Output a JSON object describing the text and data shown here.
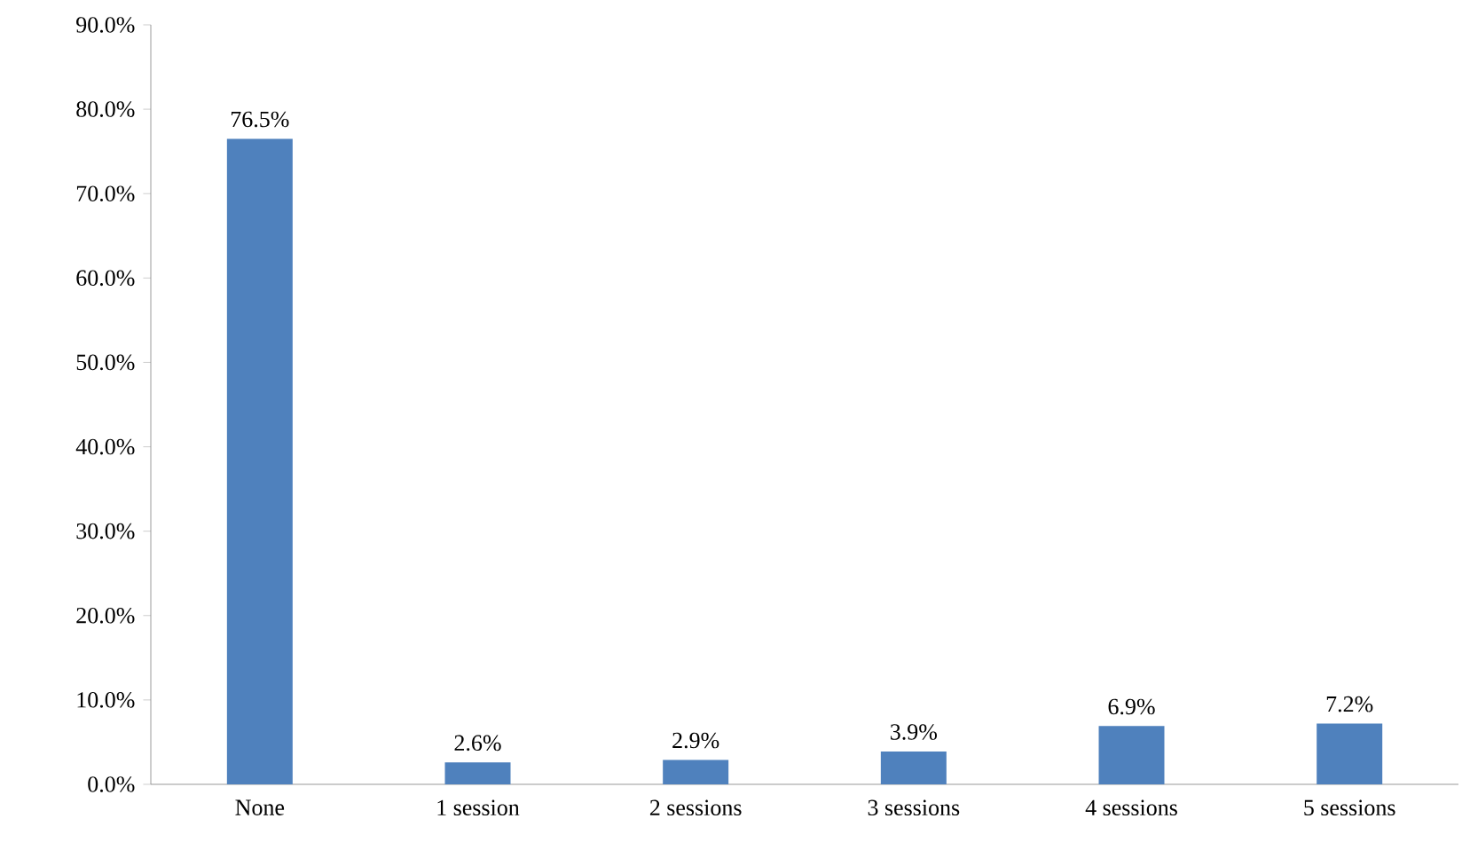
{
  "chart_data": {
    "type": "bar",
    "categories": [
      "None",
      "1 session",
      "2 sessions",
      "3 sessions",
      "4 sessions",
      "5 sessions"
    ],
    "values": [
      76.5,
      2.6,
      2.9,
      3.9,
      6.9,
      7.2
    ],
    "value_labels": [
      "76.5%",
      "2.6%",
      "2.9%",
      "3.9%",
      "6.9%",
      "7.2%"
    ],
    "color": "#4f81bd",
    "ylim": [
      0,
      90
    ],
    "yticks": [
      {
        "value": 0,
        "label": "0.0%"
      },
      {
        "value": 10,
        "label": "10.0%"
      },
      {
        "value": 20,
        "label": "20.0%"
      },
      {
        "value": 30,
        "label": "30.0%"
      },
      {
        "value": 40,
        "label": "40.0%"
      },
      {
        "value": 50,
        "label": "50.0%"
      },
      {
        "value": 60,
        "label": "60.0%"
      },
      {
        "value": 70,
        "label": "70.0%"
      },
      {
        "value": 80,
        "label": "80.0%"
      },
      {
        "value": 90,
        "label": "90.0%"
      }
    ],
    "grid": false
  }
}
